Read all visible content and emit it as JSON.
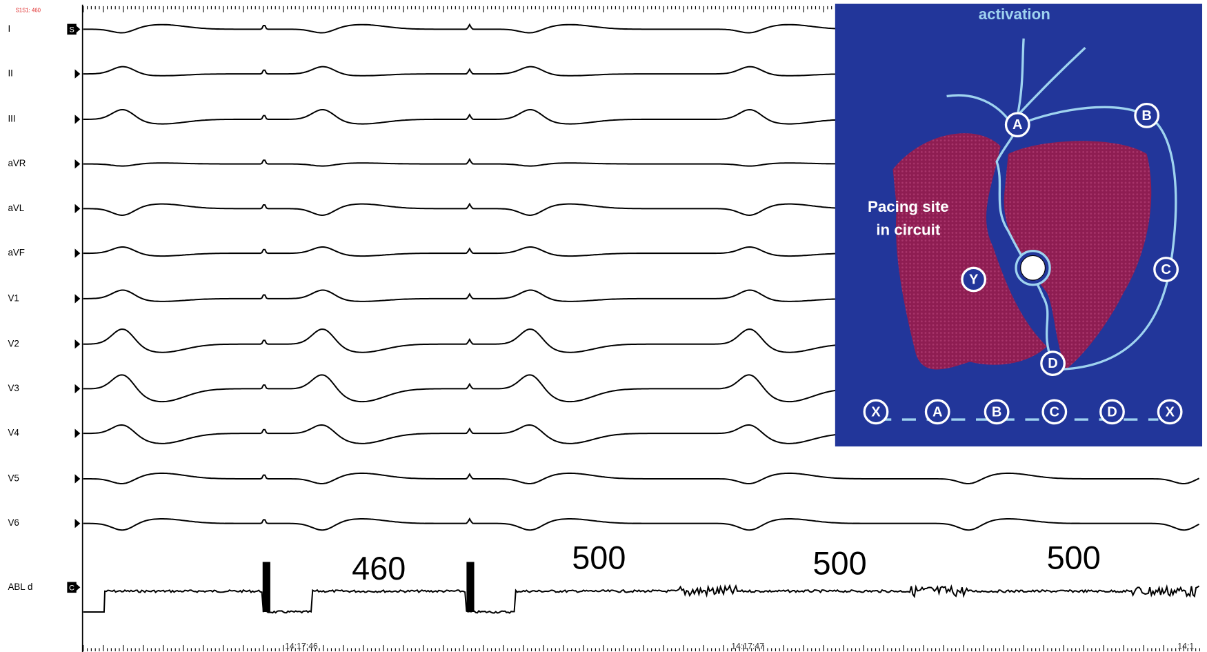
{
  "header": {
    "stim_label": "S1S1: 460"
  },
  "leads": [
    "I",
    "II",
    "III",
    "aVR",
    "aVL",
    "aVF",
    "V1",
    "V2",
    "V3",
    "V4",
    "V5",
    "V6",
    "ABL d"
  ],
  "lead_markers": [
    "S",
    "C"
  ],
  "intervals": [
    460,
    500,
    500,
    500
  ],
  "time_labels": [
    "14:17:46",
    "14:17:47",
    "14:1"
  ],
  "diagram": {
    "title": "activation",
    "pacing_label": [
      "Pacing site",
      "in circuit"
    ],
    "nodes": [
      "A",
      "B",
      "C",
      "D",
      "Y"
    ],
    "sequence": [
      "X",
      "A",
      "B",
      "C",
      "D",
      "X"
    ]
  }
}
